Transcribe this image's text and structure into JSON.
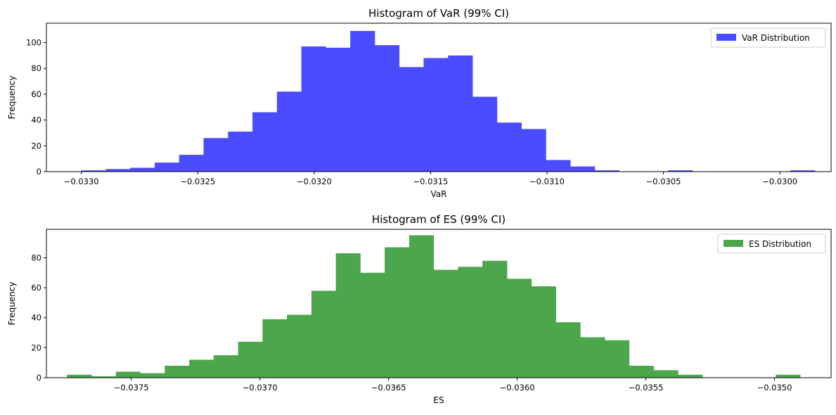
{
  "chart_data": [
    {
      "type": "bar",
      "title": "Histogram of VaR (99% CI)",
      "xlabel": "VaR",
      "ylabel": "Frequency",
      "xlim": [
        -0.03315,
        -0.02978
      ],
      "ylim": [
        0,
        115
      ],
      "xticks": [
        -0.033,
        -0.0325,
        -0.032,
        -0.0315,
        -0.031,
        -0.0305,
        -0.03
      ],
      "xtick_labels": [
        "−0.0330",
        "−0.0325",
        "−0.0320",
        "−0.0315",
        "−0.0310",
        "−0.0305",
        "−0.0300"
      ],
      "yticks": [
        0,
        20,
        40,
        60,
        80,
        100
      ],
      "ytick_labels": [
        "0",
        "20",
        "40",
        "60",
        "80",
        "100"
      ],
      "bin_start": -0.033,
      "bin_end": -0.02985,
      "values": [
        1,
        2,
        3,
        7,
        13,
        26,
        31,
        46,
        62,
        97,
        96,
        109,
        98,
        81,
        88,
        90,
        58,
        38,
        33,
        9,
        4,
        1,
        0,
        0,
        1,
        0,
        0,
        0,
        0,
        1
      ],
      "series": [
        {
          "name": "VaR Distribution",
          "color": "#4c4cff"
        }
      ],
      "legend": "top-right",
      "grid": false
    },
    {
      "type": "bar",
      "title": "Histogram of ES (99% CI)",
      "xlabel": "ES",
      "ylabel": "Frequency",
      "xlim": [
        -0.03783,
        -0.03478
      ],
      "ylim": [
        0,
        99
      ],
      "xticks": [
        -0.0375,
        -0.037,
        -0.0365,
        -0.036,
        -0.0355,
        -0.035
      ],
      "xtick_labels": [
        "−0.0375",
        "−0.0370",
        "−0.0365",
        "−0.0360",
        "−0.0355",
        "−0.0350"
      ],
      "yticks": [
        0,
        20,
        40,
        60,
        80
      ],
      "ytick_labels": [
        "0",
        "20",
        "40",
        "60",
        "80"
      ],
      "bin_start": -0.03775,
      "bin_end": -0.0349,
      "values": [
        2,
        1,
        4,
        3,
        8,
        12,
        15,
        24,
        39,
        42,
        58,
        83,
        70,
        87,
        95,
        72,
        74,
        78,
        66,
        61,
        37,
        27,
        25,
        8,
        5,
        2,
        0,
        0,
        0,
        2
      ],
      "series": [
        {
          "name": "ES Distribution",
          "color": "#4ca64c"
        }
      ],
      "legend": "top-right",
      "grid": false
    }
  ]
}
